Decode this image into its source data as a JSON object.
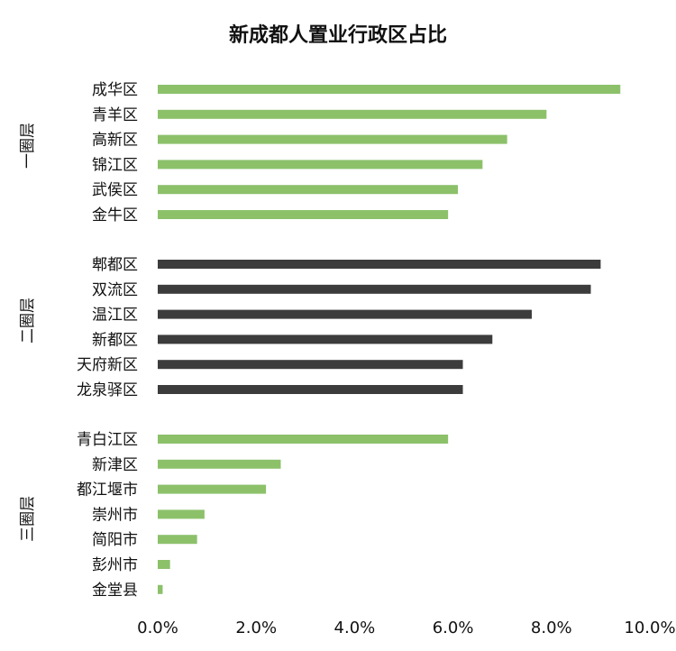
{
  "chart_data": {
    "type": "bar",
    "orientation": "horizontal",
    "title": "新成都人置业行政区占比",
    "xlim": [
      0,
      10
    ],
    "x_ticks": [
      "0.0%",
      "2.0%",
      "4.0%",
      "6.0%",
      "8.0%",
      "10.0%"
    ],
    "grid": false,
    "legend": "none",
    "groups": [
      {
        "name": "一圈层",
        "color": "#8cc16a",
        "items": [
          {
            "label": "成华区",
            "value": 9.4
          },
          {
            "label": "青羊区",
            "value": 7.9
          },
          {
            "label": "高新区",
            "value": 7.1
          },
          {
            "label": "锦江区",
            "value": 6.6
          },
          {
            "label": "武侯区",
            "value": 6.1
          },
          {
            "label": "金牛区",
            "value": 5.9
          }
        ]
      },
      {
        "name": "二圈层",
        "color": "#3c3c3c",
        "items": [
          {
            "label": "郫都区",
            "value": 9.0
          },
          {
            "label": "双流区",
            "value": 8.8
          },
          {
            "label": "温江区",
            "value": 7.6
          },
          {
            "label": "新都区",
            "value": 6.8
          },
          {
            "label": "天府新区",
            "value": 6.2
          },
          {
            "label": "龙泉驿区",
            "value": 6.2
          }
        ]
      },
      {
        "name": "三圈层",
        "color": "#8cc16a",
        "items": [
          {
            "label": "青白江区",
            "value": 5.9
          },
          {
            "label": "新津区",
            "value": 2.5
          },
          {
            "label": "都江堰市",
            "value": 2.2
          },
          {
            "label": "崇州市",
            "value": 0.95
          },
          {
            "label": "简阳市",
            "value": 0.8
          },
          {
            "label": "彭州市",
            "value": 0.25
          },
          {
            "label": "金堂县",
            "value": 0.1
          }
        ]
      }
    ]
  }
}
